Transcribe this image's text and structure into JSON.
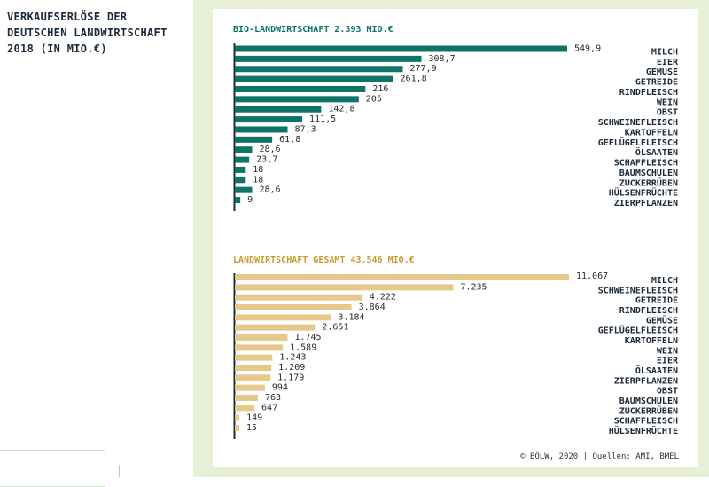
{
  "page": {
    "title_lines": [
      "VERKAUFSERLÖSE DER",
      "DEUTSCHEN LANDWIRTSCHAFT",
      "2018 (IN MIO.€)"
    ],
    "source": "© BÖLW, 2020 | Quellen: AMI, BMEL"
  },
  "colors": {
    "bio": "#0e7467",
    "gesamt": "#e6c98a",
    "bio_title": "#0e7467",
    "gesamt_title": "#c99b2e",
    "panel": "#e7efd6"
  },
  "chart_data": [
    {
      "type": "bar",
      "orientation": "horizontal",
      "title": "BIO-LANDWIRTSCHAFT 2.393 MIO.€",
      "categories": [
        "MILCH",
        "EIER",
        "GEMÜSE",
        "GETREIDE",
        "RINDFLEISCH",
        "WEIN",
        "OBST",
        "SCHWEINEFLEISCH",
        "KARTOFFELN",
        "GEFLÜGELFLEISCH",
        "ÖLSAATEN",
        "SCHAFFLEISCH",
        "BAUMSCHULEN",
        "ZUCKERRÜBEN",
        "HÜLSENFRÜCHTE",
        "ZIERPFLANZEN"
      ],
      "values": [
        549.9,
        308.7,
        277.9,
        261.8,
        216,
        205,
        142.8,
        111.5,
        87.3,
        61.8,
        28.6,
        23.7,
        18,
        18,
        28.6,
        9
      ],
      "value_labels": [
        "549,9",
        "308,7",
        "277,9",
        "261,8",
        "216",
        "205",
        "142,8",
        "111,5",
        "87,3",
        "61,8",
        "28,6",
        "23,7",
        "18",
        "18",
        "28,6",
        "9"
      ]
    },
    {
      "type": "bar",
      "orientation": "horizontal",
      "title": "LANDWIRTSCHAFT GESAMT 43.546 MIO.€",
      "categories": [
        "MILCH",
        "SCHWEINEFLEISCH",
        "GETREIDE",
        "RINDFLEISCH",
        "GEMÜSE",
        "GEFLÜGELFLEISCH",
        "KARTOFFELN",
        "WEIN",
        "EIER",
        "ÖLSAATEN",
        "ZIERPFLANZEN",
        "OBST",
        "BAUMSCHULEN",
        "ZUCKERRÜBEN",
        "SCHAFFLEISCH",
        "HÜLSENFRÜCHTE"
      ],
      "values": [
        11067,
        7235,
        4222,
        3864,
        3184,
        2651,
        1745,
        1589,
        1243,
        1209,
        1179,
        994,
        763,
        647,
        149,
        15
      ],
      "value_labels": [
        "11.067",
        "7.235",
        "4.222",
        "3.864",
        "3.184",
        "2.651",
        "1.745",
        "1.589",
        "1.243",
        "1.209",
        "1.179",
        "994",
        "763",
        "647",
        "149",
        "15"
      ]
    }
  ]
}
